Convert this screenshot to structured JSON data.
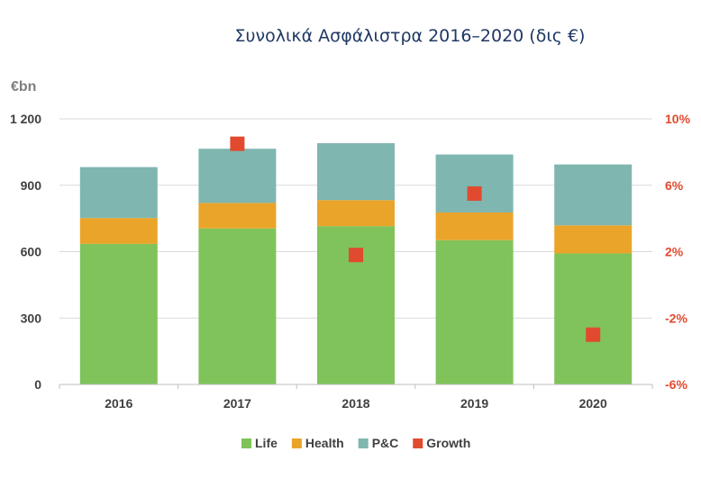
{
  "chart_data": {
    "type": "bar",
    "stacked": true,
    "title": "Συνολικά Ασφάλιστρα 2016–2020 (δις €)",
    "ylabel": "€bn",
    "categories": [
      "2016",
      "2017",
      "2018",
      "2019",
      "2020"
    ],
    "ylim": [
      0,
      1200
    ],
    "yticks": [
      0,
      300,
      600,
      900,
      1200
    ],
    "ytick_labels": [
      "0",
      "300",
      "600",
      "900",
      "1 200"
    ],
    "y2lim": [
      -6,
      10
    ],
    "y2ticks": [
      -6,
      -2,
      2,
      6,
      10
    ],
    "y2tick_labels": [
      "-6%",
      "-2%",
      "2%",
      "6%",
      "10%"
    ],
    "grid": true,
    "legend_position": "bottom",
    "series": [
      {
        "name": "Life",
        "kind": "bar",
        "color": "#7fc35a",
        "values": [
          635,
          705,
          715,
          652,
          592
        ]
      },
      {
        "name": "Health",
        "kind": "bar",
        "color": "#eaa42a",
        "values": [
          117,
          115,
          118,
          125,
          127
        ]
      },
      {
        "name": "P&C",
        "kind": "bar",
        "color": "#7fb6b0",
        "values": [
          230,
          245,
          257,
          262,
          275
        ]
      },
      {
        "name": "Growth",
        "kind": "scatter",
        "axis": "right",
        "color": "#e14a2e",
        "marker": "square",
        "values": [
          null,
          8.5,
          1.8,
          5.5,
          -3.0
        ]
      }
    ],
    "right_axis_color": "#e14a2e"
  }
}
